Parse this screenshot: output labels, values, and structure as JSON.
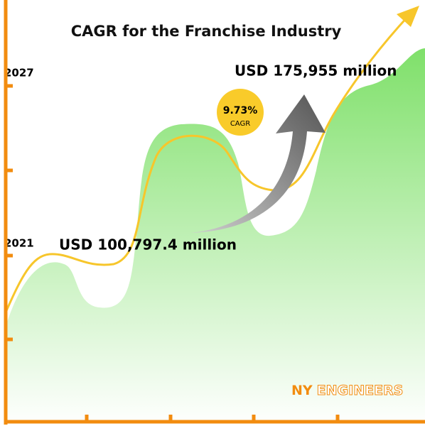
{
  "title": "CAGR for the Franchise Industry",
  "labels": {
    "start_year": "2021",
    "end_year": "2027",
    "start_value": "USD 100,797.4 million",
    "end_value": "USD 175,955 million"
  },
  "badge": {
    "rate": "9.73%",
    "caption": "CAGR"
  },
  "logo": {
    "first": "NY",
    "second": "ENGINEERS"
  }
}
